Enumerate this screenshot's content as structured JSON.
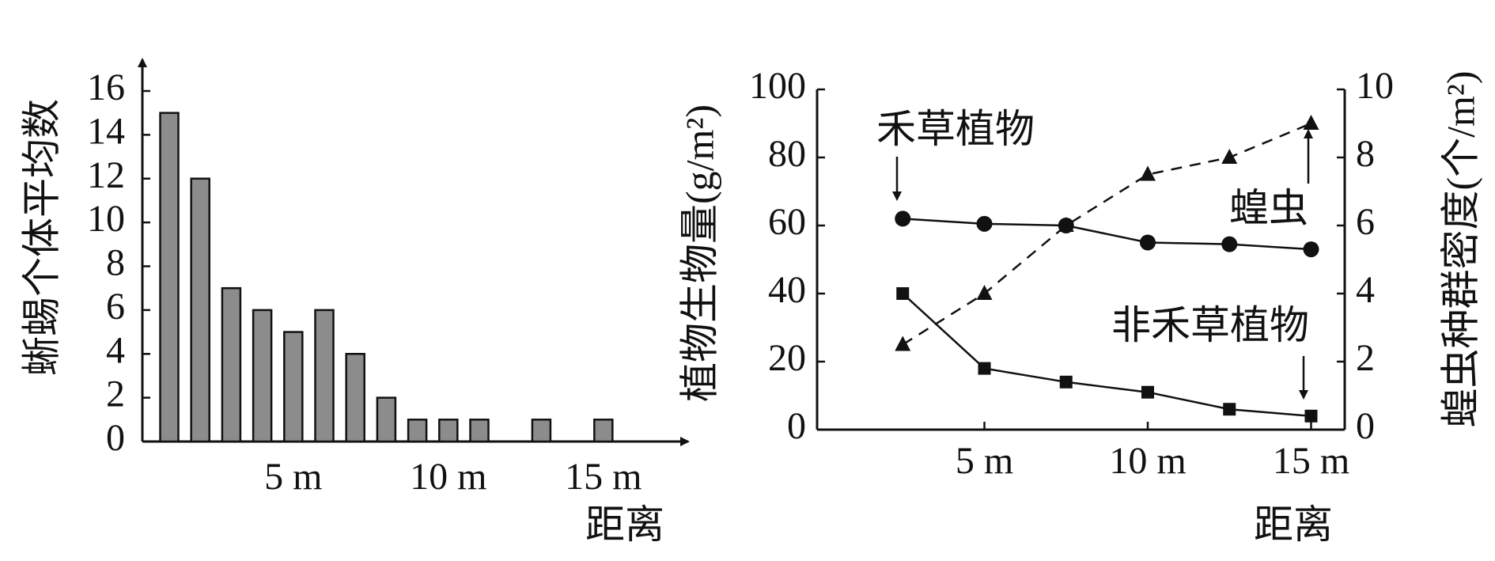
{
  "chart_data": [
    {
      "type": "bar",
      "ylabel": "蜥蜴个体平均数",
      "xlabel": "距离",
      "ylim": [
        0,
        16
      ],
      "yticks": [
        0,
        2,
        4,
        6,
        8,
        10,
        12,
        14,
        16
      ],
      "xtick_labels": [
        "5 m",
        "10 m",
        "15 m"
      ],
      "xtick_positions_m": [
        5,
        10,
        15
      ],
      "x": [
        1,
        2,
        3,
        4,
        5,
        6,
        7,
        8,
        9,
        10,
        11,
        13,
        15
      ],
      "values": [
        15,
        12,
        7,
        6,
        5,
        6,
        4,
        2,
        1,
        1,
        1,
        1,
        1
      ],
      "bar_color": "#8c8c8c"
    },
    {
      "type": "line",
      "xlabel": "距离",
      "ylabel_left": "植物生物量(g/m²)",
      "ylabel_right": "蝗虫种群密度(个/m²)",
      "ylim_left": [
        0,
        100
      ],
      "ylim_right": [
        0,
        10
      ],
      "yticks_left": [
        0,
        20,
        40,
        60,
        80,
        100
      ],
      "yticks_right": [
        0,
        2,
        4,
        6,
        8,
        10
      ],
      "xtick_labels": [
        "5 m",
        "10 m",
        "15 m"
      ],
      "xtick_positions_m": [
        5,
        10,
        15
      ],
      "series": [
        {
          "name": "禾草植物",
          "axis": "left",
          "marker": "circle",
          "line": "solid",
          "x": [
            2.5,
            5,
            7.5,
            10,
            12.5,
            15
          ],
          "values": [
            62,
            60.5,
            60,
            55,
            54.5,
            53
          ]
        },
        {
          "name": "非禾草植物",
          "axis": "left",
          "marker": "square",
          "line": "solid",
          "x": [
            2.5,
            5,
            7.5,
            10,
            12.5,
            15
          ],
          "values": [
            40,
            18,
            14,
            11,
            6,
            4
          ]
        },
        {
          "name": "蝗虫",
          "axis": "right",
          "marker": "triangle",
          "line": "dashed",
          "x": [
            2.5,
            5,
            7.5,
            10,
            12.5,
            15
          ],
          "values": [
            2.5,
            4,
            6,
            7.5,
            8,
            9
          ]
        }
      ]
    }
  ]
}
